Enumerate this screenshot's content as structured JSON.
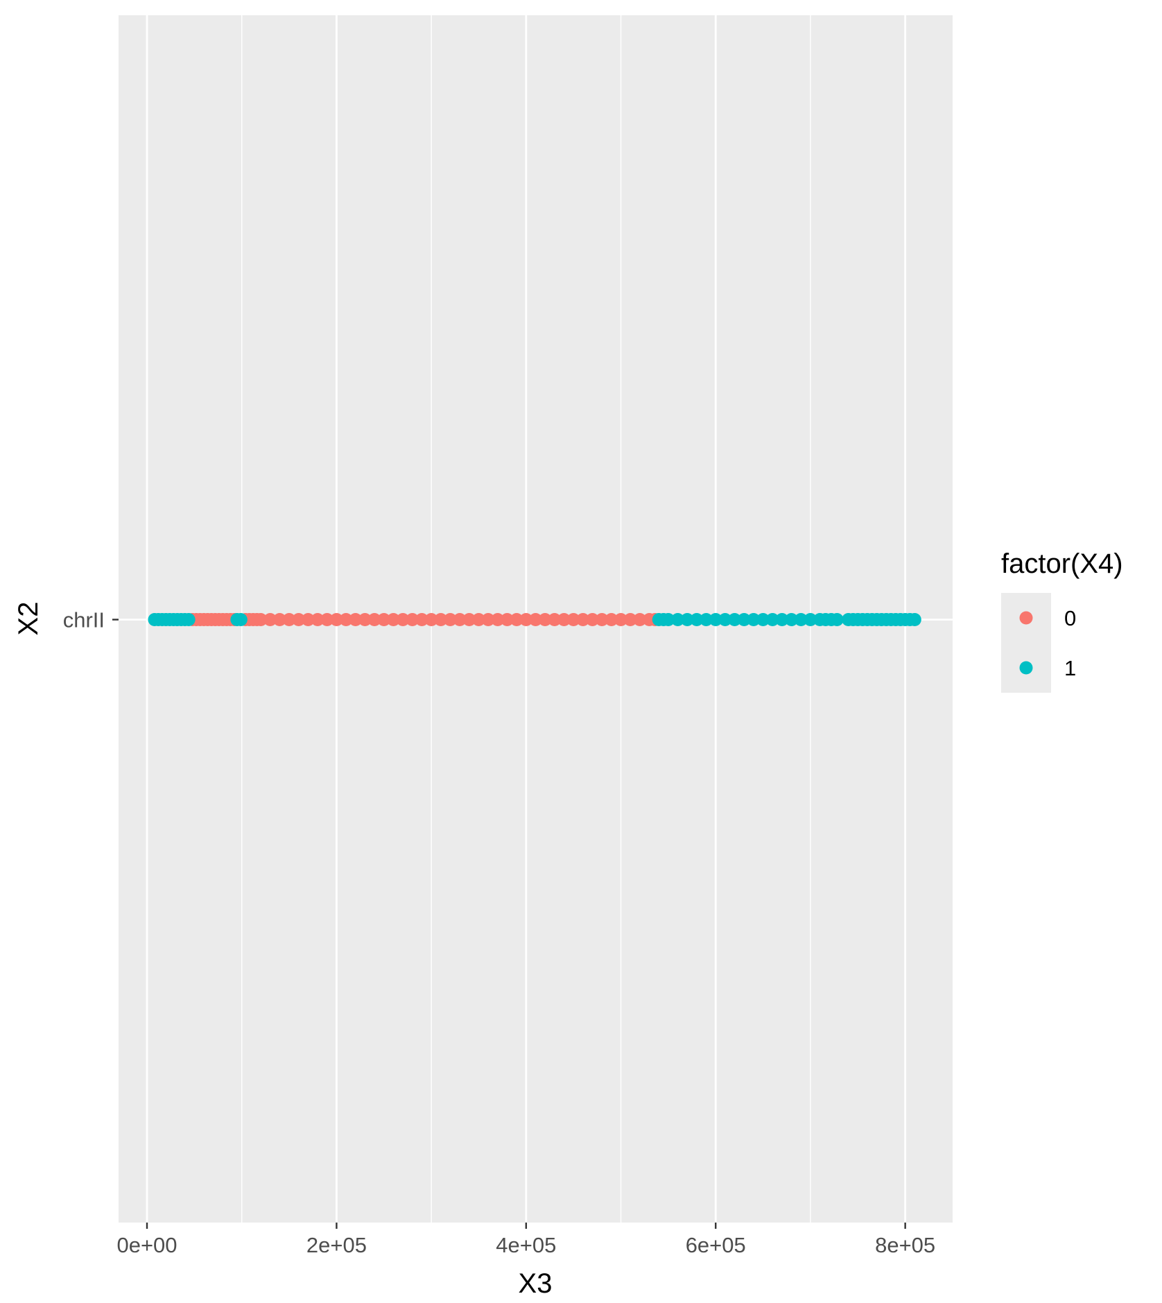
{
  "chart_data": {
    "type": "scatter",
    "xlabel": "X3",
    "ylabel": "X2",
    "xlim": [
      -30000,
      850000
    ],
    "x_ticks": [
      0,
      200000,
      400000,
      600000,
      800000
    ],
    "x_tick_labels": [
      "0e+00",
      "2e+05",
      "4e+05",
      "6e+05",
      "8e+05"
    ],
    "y_categories": [
      "chrII"
    ],
    "grid": true,
    "legend": {
      "title": "factor(X4)",
      "position": "right",
      "entries": [
        {
          "label": "0",
          "color": "#F8766D"
        },
        {
          "label": "1",
          "color": "#00BFC4"
        }
      ]
    },
    "series": [
      {
        "name": "0",
        "color": "#F8766D",
        "y": "chrII",
        "x": [
          48000,
          52000,
          56000,
          60000,
          64000,
          68000,
          72000,
          76000,
          80000,
          84000,
          88000,
          92000,
          104000,
          108000,
          112000,
          116000,
          120000,
          130000,
          140000,
          150000,
          160000,
          170000,
          180000,
          190000,
          200000,
          210000,
          220000,
          230000,
          240000,
          250000,
          260000,
          270000,
          280000,
          290000,
          300000,
          310000,
          320000,
          330000,
          340000,
          350000,
          360000,
          370000,
          380000,
          390000,
          400000,
          410000,
          420000,
          430000,
          440000,
          450000,
          460000,
          470000,
          480000,
          490000,
          500000,
          510000,
          520000,
          530000,
          536000
        ]
      },
      {
        "name": "1",
        "color": "#00BFC4",
        "y": "chrII",
        "x": [
          8000,
          12000,
          16000,
          20000,
          24000,
          28000,
          32000,
          36000,
          40000,
          44000,
          95000,
          99000,
          540000,
          545000,
          550000,
          560000,
          570000,
          580000,
          590000,
          600000,
          610000,
          620000,
          630000,
          640000,
          650000,
          660000,
          670000,
          680000,
          690000,
          700000,
          710000,
          716000,
          722000,
          728000,
          740000,
          745000,
          750000,
          755000,
          760000,
          765000,
          770000,
          775000,
          780000,
          785000,
          790000,
          795000,
          800000,
          805000,
          810000
        ]
      }
    ]
  }
}
